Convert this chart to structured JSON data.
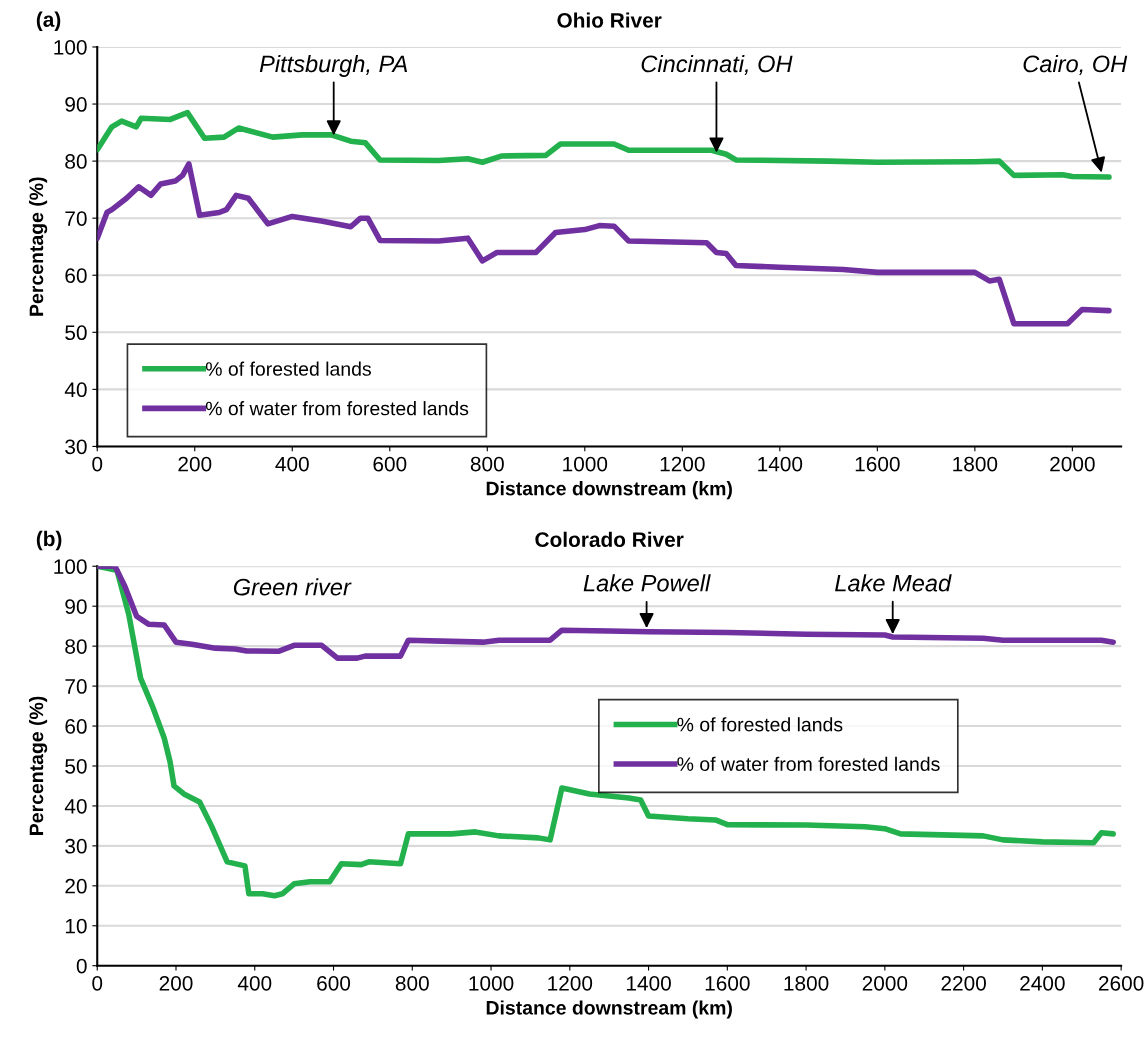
{
  "chart_data": [
    {
      "type": "line",
      "title": "Ohio River",
      "xlabel": "Distance downstream (km)",
      "ylabel": "Percentage (%)",
      "xlim": [
        0,
        2100
      ],
      "xticks": [
        0,
        200,
        400,
        600,
        800,
        1000,
        1200,
        1400,
        1600,
        1800,
        2000
      ],
      "ylim": [
        30,
        100
      ],
      "yticks": [
        30,
        40,
        50,
        60,
        70,
        80,
        90,
        100
      ],
      "grid": "y",
      "legend": "lower left",
      "marker": "none",
      "line_style": "solid",
      "annotations": [
        "(a)",
        {
          "text": "Pittsburgh, PA",
          "x": 485,
          "y": 84.5
        },
        {
          "text": "Cincinnati, OH",
          "x": 1270,
          "y": 81.5
        },
        {
          "text": "Cairo, OH",
          "x": 2060,
          "y": 78
        }
      ],
      "series": [
        {
          "name": "% of forested lands",
          "color": "#22b14c",
          "x": [
            0,
            30,
            50,
            80,
            90,
            150,
            185,
            220,
            260,
            290,
            360,
            420,
            480,
            520,
            550,
            580,
            700,
            760,
            790,
            830,
            920,
            950,
            1060,
            1090,
            1260,
            1290,
            1310,
            1500,
            1600,
            1800,
            1850,
            1880,
            1980,
            2000,
            2075
          ],
          "values": [
            82,
            86,
            87,
            86,
            87.5,
            87.3,
            88.5,
            84,
            84.2,
            85.8,
            84.2,
            84.6,
            84.6,
            83.5,
            83.2,
            80.2,
            80.1,
            80.4,
            79.8,
            80.9,
            81,
            83,
            83,
            81.9,
            81.9,
            81.2,
            80.2,
            80,
            79.8,
            79.9,
            80,
            77.5,
            77.6,
            77.3,
            77.2
          ]
        },
        {
          "name": "% of water from forested lands",
          "color": "#7030a0",
          "x": [
            0,
            20,
            30,
            60,
            85,
            110,
            130,
            160,
            175,
            188,
            210,
            250,
            265,
            285,
            310,
            350,
            400,
            460,
            520,
            540,
            555,
            580,
            700,
            760,
            790,
            820,
            900,
            940,
            1000,
            1030,
            1060,
            1090,
            1250,
            1270,
            1290,
            1310,
            1400,
            1530,
            1600,
            1800,
            1830,
            1850,
            1880,
            1990,
            2020,
            2075
          ],
          "values": [
            66.5,
            71,
            71.5,
            73.5,
            75.5,
            74,
            76,
            76.5,
            77.5,
            79.5,
            70.5,
            71,
            71.5,
            74,
            73.5,
            69,
            70.3,
            69.5,
            68.5,
            70,
            70,
            66.1,
            66,
            66.5,
            62.5,
            64,
            64,
            67.5,
            68,
            68.7,
            68.6,
            66,
            65.7,
            64,
            63.8,
            61.7,
            61.4,
            61,
            60.5,
            60.5,
            59,
            59.3,
            51.5,
            51.5,
            54,
            53.8
          ]
        }
      ]
    },
    {
      "type": "line",
      "title": "Colorado River",
      "xlabel": "Distance downstream (km)",
      "ylabel": "Percentage (%)",
      "xlim": [
        0,
        2600
      ],
      "xticks": [
        0,
        200,
        400,
        600,
        800,
        1000,
        1200,
        1400,
        1600,
        1800,
        2000,
        2200,
        2400,
        2600
      ],
      "ylim": [
        0,
        100
      ],
      "yticks": [
        0,
        10,
        20,
        30,
        40,
        50,
        60,
        70,
        80,
        90,
        100
      ],
      "grid": "y",
      "legend": "center right",
      "marker": "none",
      "line_style": "solid",
      "annotations": [
        "(b)",
        "Green river",
        {
          "text": "Lake Powell",
          "x": 1395,
          "y": 84.5
        },
        {
          "text": "Lake Mead",
          "x": 2020,
          "y": 83
        }
      ],
      "series": [
        {
          "name": "% of forested lands",
          "color": "#22b14c",
          "x": [
            0,
            50,
            80,
            110,
            140,
            170,
            185,
            195,
            220,
            260,
            290,
            330,
            375,
            385,
            420,
            450,
            470,
            500,
            540,
            590,
            620,
            670,
            690,
            770,
            790,
            900,
            960,
            1020,
            1120,
            1150,
            1180,
            1250,
            1350,
            1380,
            1400,
            1500,
            1570,
            1600,
            1800,
            1950,
            2000,
            2040,
            2250,
            2300,
            2400,
            2530,
            2550,
            2580
          ],
          "values": [
            100,
            99,
            88,
            72,
            65,
            57,
            51,
            45,
            43,
            41,
            35,
            26,
            25,
            18,
            18,
            17.5,
            18,
            20.5,
            21,
            21,
            25.5,
            25.3,
            26,
            25.5,
            33,
            33,
            33.5,
            32.5,
            32,
            31.5,
            44.5,
            43,
            42,
            41.5,
            37.5,
            36.8,
            36.5,
            35.3,
            35.2,
            34.8,
            34.3,
            33,
            32.5,
            31.5,
            31,
            30.8,
            33.3,
            33
          ]
        },
        {
          "name": "% of water from forested lands",
          "color": "#7030a0",
          "x": [
            0,
            45,
            70,
            100,
            130,
            170,
            200,
            240,
            300,
            350,
            380,
            460,
            500,
            570,
            610,
            660,
            680,
            770,
            790,
            900,
            980,
            1020,
            1150,
            1180,
            1300,
            1400,
            1600,
            1800,
            2000,
            2020,
            2250,
            2300,
            2550,
            2580
          ],
          "values": [
            100,
            100,
            95,
            87.5,
            85.5,
            85.3,
            81,
            80.5,
            79.5,
            79.3,
            78.8,
            78.7,
            80.2,
            80.2,
            77,
            77,
            77.5,
            77.5,
            81.5,
            81.2,
            81,
            81.5,
            81.5,
            84,
            83.8,
            83.6,
            83.4,
            83,
            82.8,
            82.3,
            82,
            81.5,
            81.5,
            81
          ]
        }
      ]
    }
  ]
}
